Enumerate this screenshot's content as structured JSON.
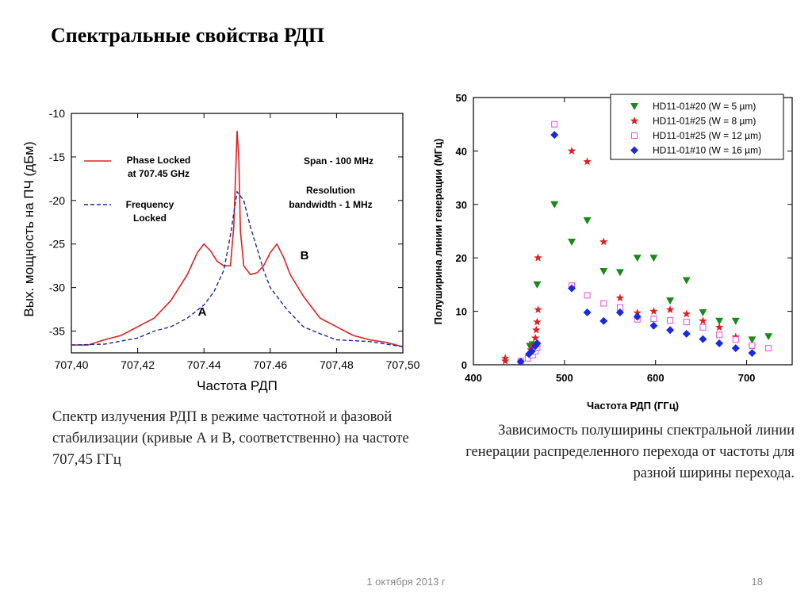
{
  "slide": {
    "title": "Спектральные свойства РДП",
    "caption_left": "Спектр излучения РДП в режиме частотной и фазовой стабилизации (кривые А и В, соответственно) на частоте 707,45 ГГц",
    "caption_right": "Зависимость полуширины спектральной линии генерации распределенного перехода от частоты для разной ширины перехода.",
    "footer_date": "1 октября 2013 г",
    "page_number": "18"
  },
  "chart_data": [
    {
      "type": "line",
      "xlabel": "Частота РДП",
      "ylabel": "Вых. мощность на ПЧ (дБм)",
      "xlim": [
        707.4,
        707.5
      ],
      "ylim": [
        -37.5,
        -10
      ],
      "x_ticks": [
        707.4,
        707.42,
        707.44,
        707.46,
        707.48,
        707.5
      ],
      "x_tick_labels": [
        "707,40",
        "707,42",
        "707.44",
        "707.46",
        "707,48",
        "707,50"
      ],
      "y_ticks": [
        -10,
        -15,
        -20,
        -25,
        -30,
        -35
      ],
      "y_tick_labels": [
        "-10",
        "-15",
        "-20",
        "-25",
        "-30",
        "-35"
      ],
      "legend": [
        {
          "label_lines": [
            "Phase Locked",
            "at 707.45 GHz"
          ],
          "color": "#e02020",
          "style": "solid"
        },
        {
          "label_lines": [
            "Frequency",
            "Locked"
          ],
          "color": "#1a2a9a",
          "style": "dashed"
        }
      ],
      "annotations": {
        "span": "Span - 100 MHz",
        "resolution_line1": "Resolution",
        "resolution_line2": "bandwidth - 1 MHz",
        "label_a": "A",
        "label_b": "B"
      },
      "series": [
        {
          "name": "Phase Locked at 707.45 GHz",
          "color": "#e02020",
          "x": [
            707.4,
            707.405,
            707.41,
            707.415,
            707.42,
            707.425,
            707.43,
            707.435,
            707.438,
            707.44,
            707.442,
            707.444,
            707.446,
            707.448,
            707.449,
            707.45,
            707.4505,
            707.451,
            707.452,
            707.454,
            707.456,
            707.458,
            707.46,
            707.462,
            707.464,
            707.466,
            707.47,
            707.475,
            707.48,
            707.485,
            707.49,
            707.495,
            707.5
          ],
          "y": [
            -36.6,
            -36.6,
            -36.0,
            -35.5,
            -34.5,
            -33.5,
            -31.5,
            -28.5,
            -26.0,
            -25.0,
            -25.8,
            -27.0,
            -27.5,
            -27.5,
            -23.0,
            -12.0,
            -15.0,
            -23.5,
            -27.5,
            -28.5,
            -28.3,
            -27.5,
            -26.0,
            -25.0,
            -26.5,
            -28.5,
            -31.0,
            -33.5,
            -34.5,
            -35.5,
            -36.0,
            -36.3,
            -36.8
          ]
        },
        {
          "name": "Frequency Locked",
          "color": "#1a2a9a",
          "x": [
            707.4,
            707.41,
            707.42,
            707.425,
            707.43,
            707.435,
            707.44,
            707.443,
            707.446,
            707.448,
            707.45,
            707.452,
            707.454,
            707.456,
            707.458,
            707.46,
            707.465,
            707.47,
            707.475,
            707.48,
            707.49,
            707.5
          ],
          "y": [
            -36.6,
            -36.5,
            -35.8,
            -35.0,
            -34.5,
            -33.5,
            -32.0,
            -30.5,
            -28.0,
            -24.0,
            -19.0,
            -20.0,
            -23.0,
            -25.5,
            -28.0,
            -30.0,
            -32.5,
            -34.5,
            -35.3,
            -36.0,
            -36.2,
            -36.8
          ]
        }
      ]
    },
    {
      "type": "scatter",
      "xlabel": "Частота РДП (ГГц)",
      "ylabel": "Полуширина линии генерации (МГц)",
      "xlim": [
        400,
        750
      ],
      "ylim": [
        0,
        50
      ],
      "x_ticks": [
        400,
        500,
        600,
        700
      ],
      "y_ticks": [
        0,
        10,
        20,
        30,
        40,
        50
      ],
      "legend_position": "top-right",
      "series": [
        {
          "name": "HD11-01#20 (W = 5 µm)",
          "marker": "triangle-down",
          "color": "#1a8a1a",
          "points": [
            [
              462,
              3.5
            ],
            [
              465,
              3.8
            ],
            [
              470,
              15
            ],
            [
              489,
              30
            ],
            [
              508,
              23
            ],
            [
              525,
              27
            ],
            [
              543,
              17.5
            ],
            [
              561,
              17.3
            ],
            [
              580,
              20
            ],
            [
              598,
              20
            ],
            [
              616,
              12
            ],
            [
              634,
              15.8
            ],
            [
              652,
              9.8
            ],
            [
              670,
              8.2
            ],
            [
              688,
              8.2
            ],
            [
              706,
              4.7
            ],
            [
              724,
              5.3
            ]
          ]
        },
        {
          "name": "HD11-01#25 (W = 8 µm)",
          "marker": "star",
          "color": "#e02020",
          "points": [
            [
              435,
              1.2
            ],
            [
              435,
              0.7
            ],
            [
              463,
              2.8
            ],
            [
              466,
              3.5
            ],
            [
              468,
              5.0
            ],
            [
              469,
              6.5
            ],
            [
              470,
              8.0
            ],
            [
              471,
              10.3
            ],
            [
              471,
              20
            ],
            [
              508,
              40
            ],
            [
              525,
              38
            ],
            [
              543,
              23
            ],
            [
              561,
              12.5
            ],
            [
              580,
              9.7
            ],
            [
              598,
              10
            ],
            [
              616,
              10.3
            ],
            [
              634,
              9.5
            ],
            [
              652,
              8.2
            ],
            [
              670,
              7.0
            ],
            [
              688,
              5.2
            ],
            [
              706,
              3.5
            ]
          ]
        },
        {
          "name": "HD11-01#25 (W = 12 µm)",
          "marker": "square-open",
          "color": "#e050e0",
          "points": [
            [
              452,
              0.7
            ],
            [
              460,
              1.2
            ],
            [
              465,
              1.8
            ],
            [
              468,
              2.5
            ],
            [
              470,
              3.2
            ],
            [
              489,
              45
            ],
            [
              508,
              14.8
            ],
            [
              525,
              13
            ],
            [
              543,
              11.5
            ],
            [
              561,
              10.7
            ],
            [
              580,
              8.5
            ],
            [
              598,
              8.6
            ],
            [
              616,
              8.3
            ],
            [
              634,
              8
            ],
            [
              652,
              7
            ],
            [
              670,
              5.6
            ],
            [
              688,
              4.7
            ],
            [
              706,
              3.6
            ],
            [
              724,
              3.1
            ]
          ]
        },
        {
          "name": "HD11-01#10 (W = 16 µm)",
          "marker": "diamond",
          "color": "#1a2ae0",
          "points": [
            [
              452,
              0.6
            ],
            [
              461,
              2.0
            ],
            [
              464,
              2.5
            ],
            [
              468,
              3.5
            ],
            [
              470,
              4.0
            ],
            [
              489,
              43
            ],
            [
              508,
              14.3
            ],
            [
              525,
              9.8
            ],
            [
              543,
              8.2
            ],
            [
              561,
              9.8
            ],
            [
              580,
              9
            ],
            [
              598,
              7.3
            ],
            [
              616,
              6.5
            ],
            [
              634,
              5.8
            ],
            [
              652,
              4.8
            ],
            [
              670,
              4.0
            ],
            [
              688,
              3.1
            ],
            [
              706,
              2.2
            ]
          ]
        }
      ]
    }
  ]
}
